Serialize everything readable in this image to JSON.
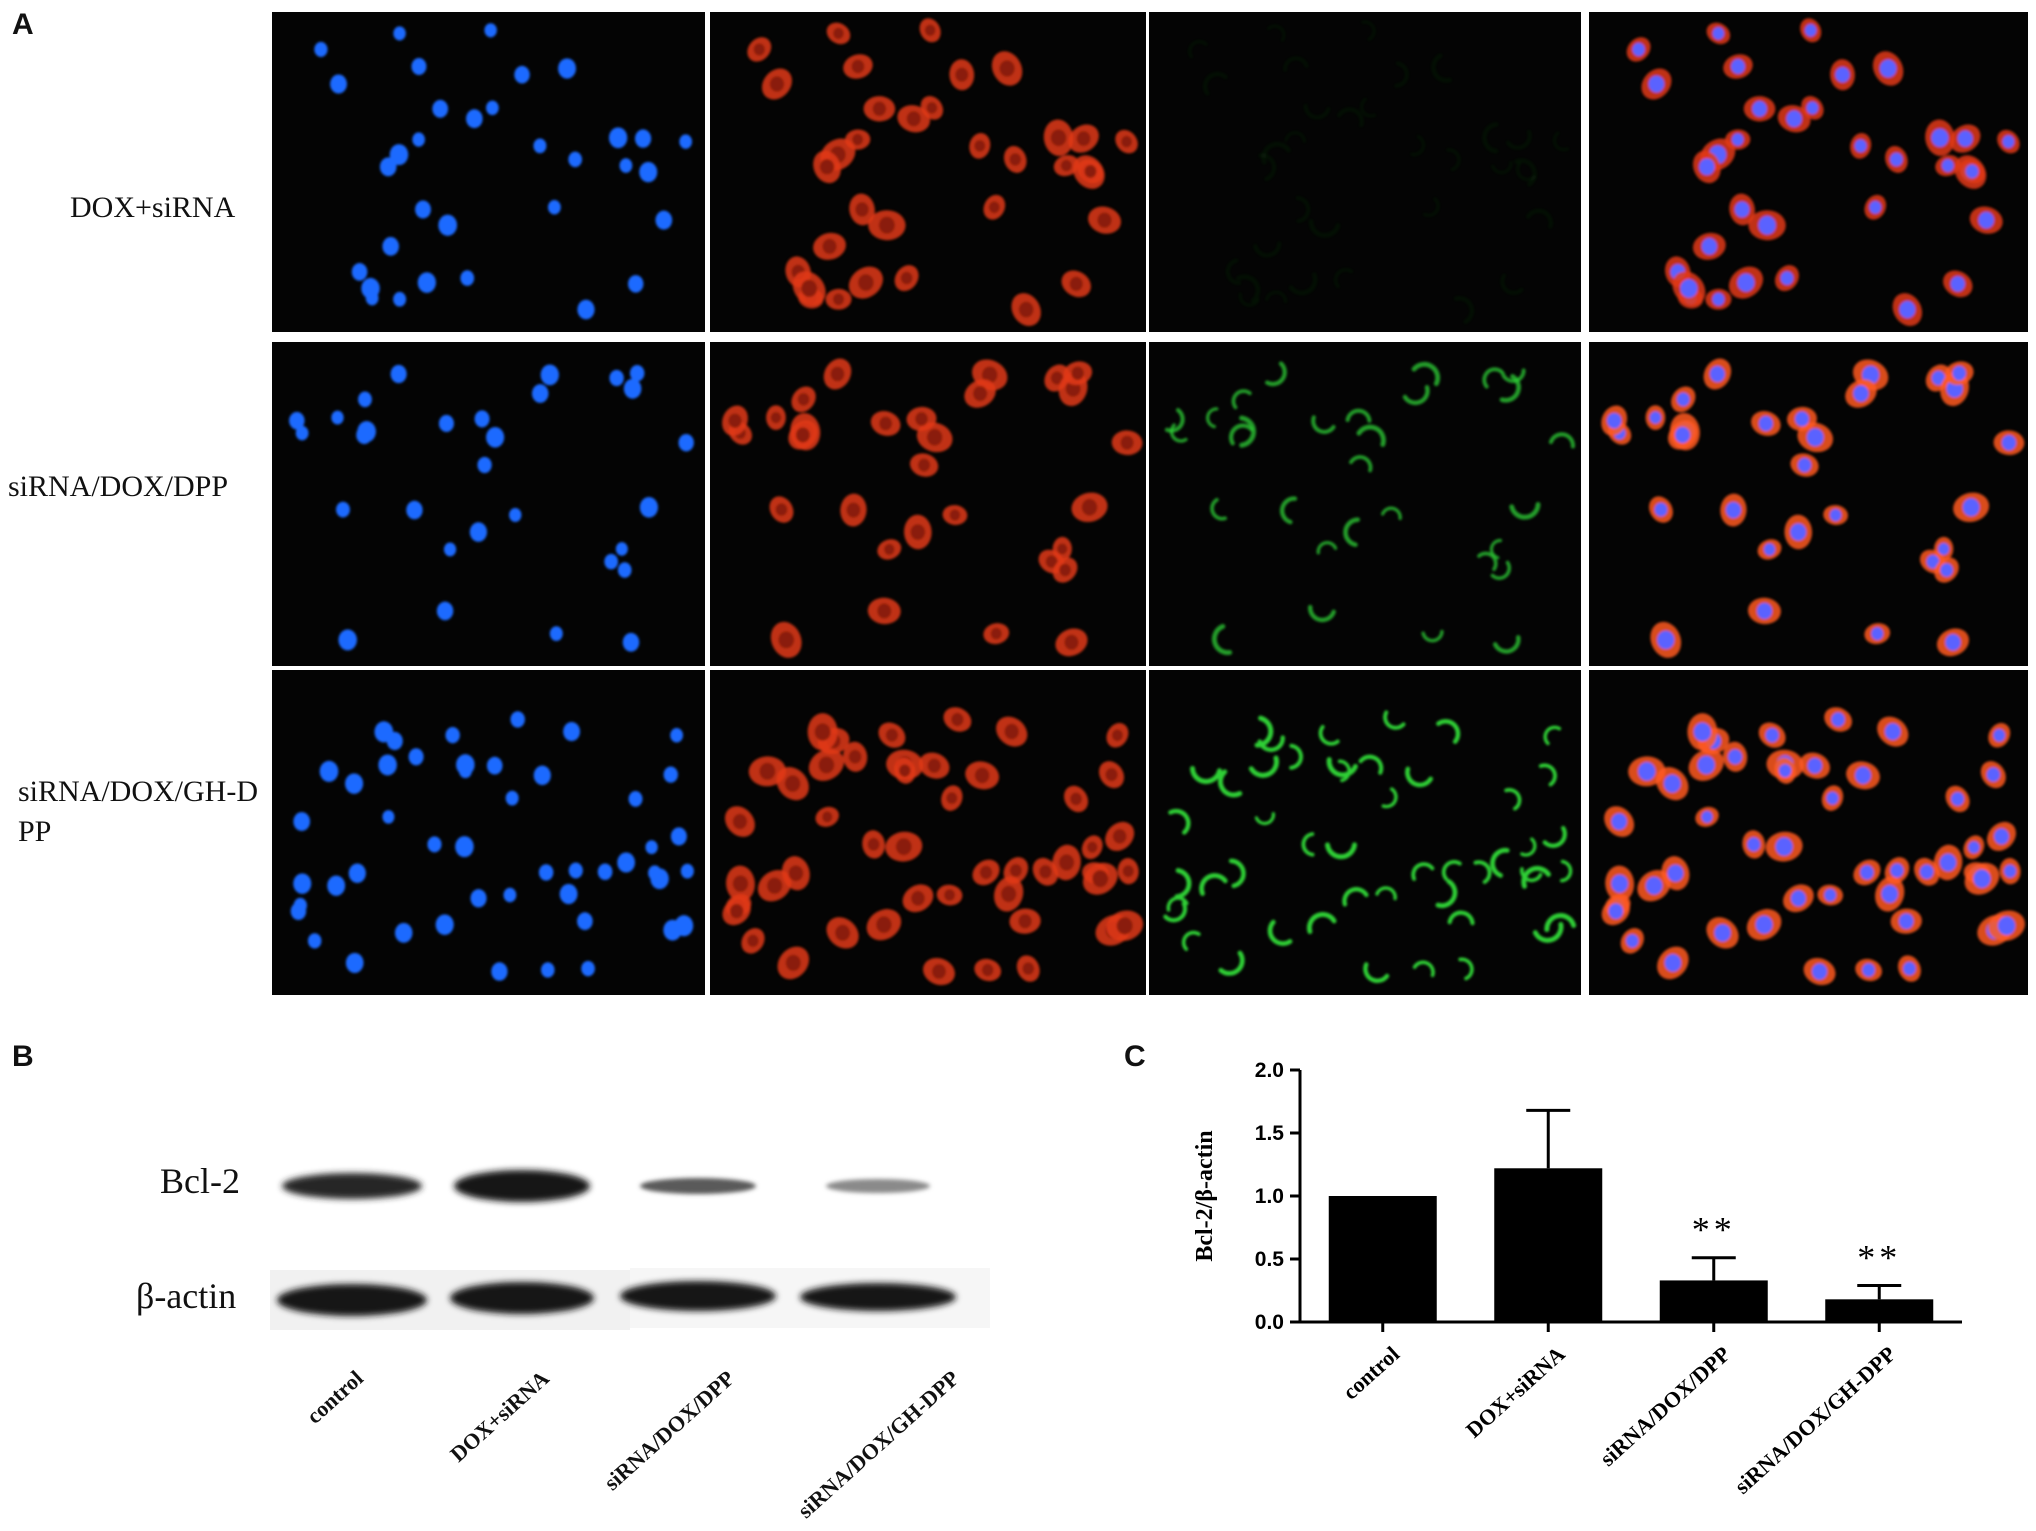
{
  "figure": {
    "panel_labels": {
      "a": "A",
      "b": "B",
      "c": "C"
    }
  },
  "panel_a": {
    "row_labels": [
      "DOX+siRNA",
      "siRNA/DOX/DPP",
      "siRNA/DOX/GH-DPP"
    ],
    "channel_colors": {
      "blue": "#1f6bff",
      "red": "#e23a16",
      "green": "#2fcf35",
      "merge_nucleus": "#5a62ff",
      "merge_cell": "#ff5a22"
    }
  },
  "panel_b": {
    "bands": [
      "Bcl-2",
      "β-actin"
    ],
    "lanes": [
      "control",
      "DOX+siRNA",
      "siRNA/DOX/DPP",
      "siRNA/DOX/GH-DPP"
    ]
  },
  "chart_data": {
    "type": "bar",
    "categories": [
      "control",
      "DOX+siRNA",
      "siRNA/DOX/DPP",
      "siRNA/DOX/GH-DPP"
    ],
    "values": [
      1.0,
      1.22,
      0.33,
      0.18
    ],
    "errors": [
      0.0,
      0.46,
      0.18,
      0.11
    ],
    "significance": [
      "",
      "",
      "**",
      "**"
    ],
    "ylabel": "Bcl-2/β-actin",
    "xlabel": "",
    "ylim": [
      0,
      2.0
    ],
    "yticks": [
      "0.0",
      "0.5",
      "1.0",
      "1.5",
      "2.0"
    ],
    "bar_color": "#000000",
    "grid": false
  }
}
